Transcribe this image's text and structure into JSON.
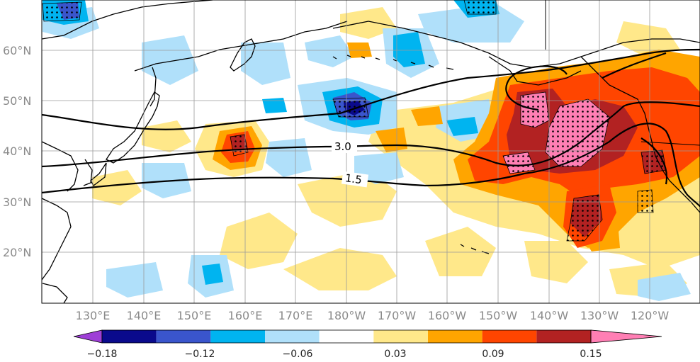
{
  "map": {
    "lat_labels": [
      "60°N",
      "50°N",
      "40°N",
      "30°N",
      "20°N"
    ],
    "lon_labels": [
      "130°E",
      "140°E",
      "150°E",
      "160°E",
      "170°E",
      "180°W",
      "170°W",
      "160°W",
      "150°W",
      "140°W",
      "130°W",
      "120°W"
    ],
    "contour_labels": [
      "3.0",
      "1.5"
    ]
  },
  "colorbar": {
    "tick_labels": [
      "−0.18",
      "−0.12",
      "−0.06",
      "0.03",
      "0.09",
      "0.15"
    ],
    "colors": [
      "#9e3fd6",
      "#0a0a8c",
      "#3a55cc",
      "#00b4f0",
      "#b0e0fa",
      "#ffffff",
      "#ffe88a",
      "#ffa500",
      "#ff4500",
      "#b22222",
      "#ff7fb4"
    ]
  }
}
